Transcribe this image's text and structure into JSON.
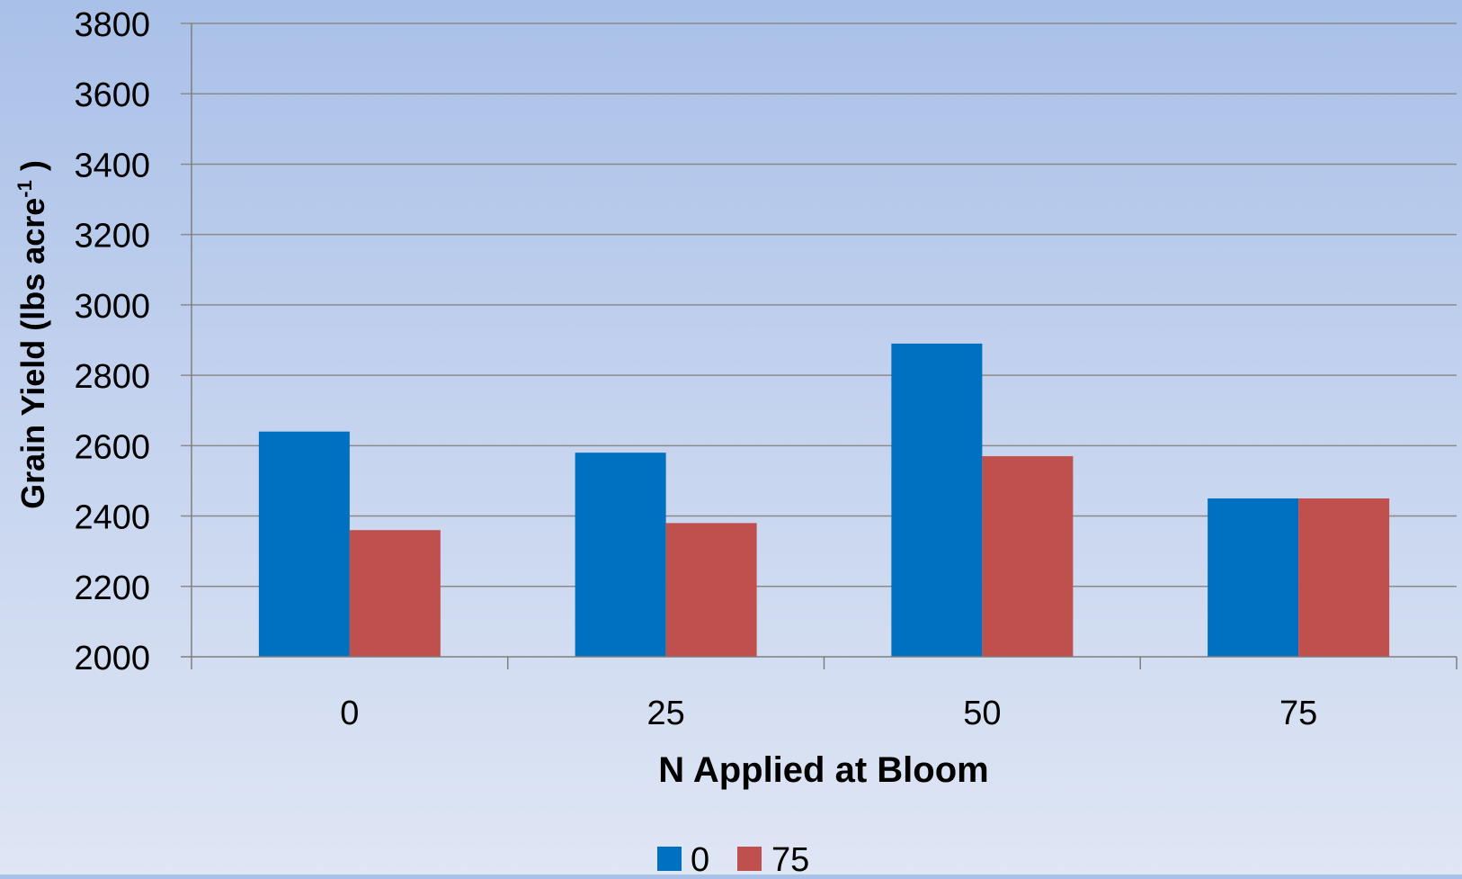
{
  "chart_data": {
    "type": "bar",
    "title": "",
    "xlabel": "N Applied at Bloom",
    "ylabel": {
      "text": "Grain Yield (lbs acre",
      "superscript": "-1",
      "suffix": " )"
    },
    "categories": [
      "0",
      "25",
      "50",
      "75"
    ],
    "series": [
      {
        "name": "0",
        "color": "#0070c0",
        "values": [
          2640,
          2580,
          2890,
          2450
        ]
      },
      {
        "name": "75",
        "color": "#c0504d",
        "values": [
          2360,
          2380,
          2570,
          2450
        ]
      }
    ],
    "ylim": [
      2000,
      3800
    ],
    "yticks": [
      "2000",
      "2200",
      "2400",
      "2600",
      "2800",
      "3000",
      "3200",
      "3400",
      "3600",
      "3800"
    ],
    "grid": true,
    "legend_position": "bottom-center"
  }
}
